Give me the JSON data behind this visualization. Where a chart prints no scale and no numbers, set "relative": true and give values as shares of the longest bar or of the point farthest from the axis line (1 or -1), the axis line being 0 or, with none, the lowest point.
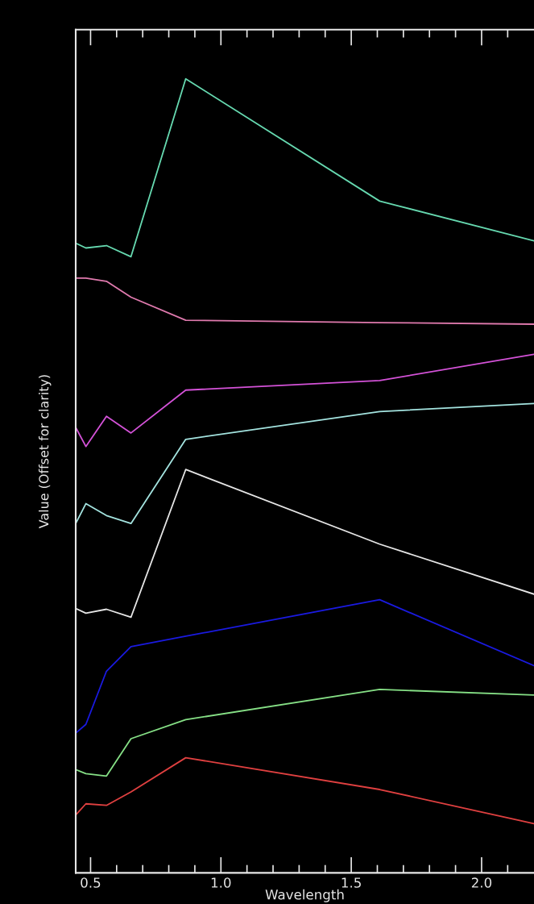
{
  "chart_data": {
    "type": "line",
    "relative": true,
    "xlabel": "Wavelength",
    "ylabel": "Value (Offset for clarity)",
    "x": [
      0.443,
      0.482,
      0.561,
      0.655,
      0.865,
      1.609,
      2.201
    ],
    "xlim": [
      0.443,
      2.201
    ],
    "xticks": [
      0.5,
      {
        "value": 0.6,
        "label": null
      },
      {
        "value": 0.7,
        "label": null
      },
      {
        "value": 0.8,
        "label": null
      },
      {
        "value": 0.9,
        "label": null
      },
      {
        "value": 1,
        "label": "1.0"
      },
      {
        "value": 1.1,
        "label": null
      },
      {
        "value": 1.2,
        "label": null
      },
      {
        "value": 1.3,
        "label": null
      },
      {
        "value": 1.4,
        "label": null
      },
      1.5,
      {
        "value": 1.6,
        "label": null
      },
      {
        "value": 1.7,
        "label": null
      },
      {
        "value": 1.8,
        "label": null
      },
      {
        "value": 1.9,
        "label": null
      },
      {
        "value": 2,
        "label": "2.0"
      },
      {
        "value": 2.1,
        "label": null
      }
    ],
    "series": [
      {
        "color": "#66d9b0",
        "values": [
          0.793,
          0.787,
          0.79,
          0.776,
          1.0,
          0.846,
          0.796
        ]
      },
      {
        "color": "#e07aae",
        "values": [
          0.749,
          0.749,
          0.745,
          0.725,
          0.696,
          0.693,
          0.691
        ]
      },
      {
        "color": "#d452d8",
        "values": [
          0.561,
          0.537,
          0.575,
          0.554,
          0.608,
          0.62,
          0.653
        ]
      },
      {
        "color": "#a4e4e0",
        "values": [
          0.44,
          0.465,
          0.45,
          0.44,
          0.546,
          0.581,
          0.591
        ]
      },
      {
        "color": "#e6e6e6",
        "values": [
          0.333,
          0.327,
          0.332,
          0.322,
          0.508,
          0.414,
          0.351
        ]
      },
      {
        "color": "#1a1ae0",
        "values": [
          0.176,
          0.187,
          0.254,
          0.285,
          0.298,
          0.344,
          0.261
        ]
      },
      {
        "color": "#86e086",
        "values": [
          0.13,
          0.125,
          0.122,
          0.169,
          0.193,
          0.231,
          0.224
        ]
      },
      {
        "color": "#e04040",
        "values": [
          0.073,
          0.087,
          0.085,
          0.102,
          0.145,
          0.105,
          0.062
        ]
      }
    ]
  }
}
